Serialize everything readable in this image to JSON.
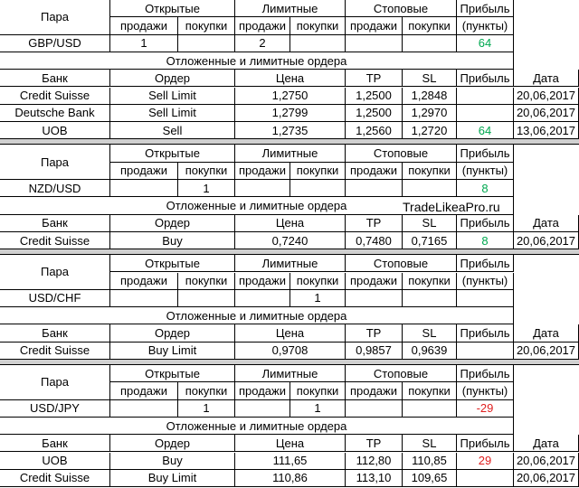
{
  "watermark": "TradeLikeaPro.ru",
  "blocks": [
    {
      "pair_table": {
        "header": [
          "Пара",
          "Открытые",
          "Лимитные",
          "Стоповые",
          "Прибыль"
        ],
        "subheader": [
          "продажи",
          "покупки",
          "продажи",
          "покупки",
          "продажи",
          "покупки",
          "(пункты)"
        ],
        "row": [
          "GBP/USD",
          1,
          null,
          2,
          null,
          null,
          null,
          64
        ],
        "profit_color": "#00a850"
      },
      "orders_title": "Отложенные и лимитные ордера",
      "orders_header": [
        "Банк",
        "Ордер",
        "Цена",
        "TP",
        "SL",
        "Прибыль",
        "Дата"
      ],
      "orders": [
        {
          "cells": [
            "Credit Suisse",
            "Sell Limit",
            "1,2750",
            "1,2500",
            "1,2848",
            null,
            "20,06,2017"
          ]
        },
        {
          "cells": [
            "Deutsche Bank",
            "Sell Limit",
            "1,2799",
            "1,2500",
            "1,2970",
            null,
            "20,06,2017"
          ]
        },
        {
          "cells": [
            "UOB",
            "Sell",
            "1,2735",
            "1,2560",
            "1,2720",
            64,
            "13,06,2017"
          ],
          "profit_color": "#00a850"
        }
      ]
    },
    {
      "pair_table": {
        "header": [
          "Пара",
          "Открытые",
          "Лимитные",
          "Стоповые",
          "Прибыль"
        ],
        "subheader": [
          "продажи",
          "покупки",
          "продажи",
          "покупки",
          "продажи",
          "покупки",
          "(пункты)"
        ],
        "row": [
          "NZD/USD",
          null,
          1,
          null,
          null,
          null,
          null,
          8
        ],
        "profit_color": "#00a850"
      },
      "orders_title": "Отложенные и лимитные ордера",
      "orders_header": [
        "Банк",
        "Ордер",
        "Цена",
        "TP",
        "SL",
        "Прибыль",
        "Дата"
      ],
      "orders": [
        {
          "cells": [
            "Credit Suisse",
            "Buy",
            "0,7240",
            "0,7480",
            "0,7165",
            8,
            "20,06,2017"
          ],
          "profit_color": "#00a850"
        }
      ]
    },
    {
      "pair_table": {
        "header": [
          "Пара",
          "Открытые",
          "Лимитные",
          "Стоповые",
          "Прибыль"
        ],
        "subheader": [
          "продажи",
          "покупки",
          "продажи",
          "покупки",
          "продажи",
          "покупки",
          "(пункты)"
        ],
        "row": [
          "USD/CHF",
          null,
          null,
          null,
          1,
          null,
          null,
          null
        ]
      },
      "orders_title": "Отложенные и лимитные ордера",
      "orders_header": [
        "Банк",
        "Ордер",
        "Цена",
        "TP",
        "SL",
        "Прибыль",
        "Дата"
      ],
      "orders": [
        {
          "cells": [
            "Credit Suisse",
            "Buy Limit",
            "0,9708",
            "0,9857",
            "0,9639",
            null,
            "20,06,2017"
          ]
        }
      ]
    },
    {
      "pair_table": {
        "header": [
          "Пара",
          "Открытые",
          "Лимитные",
          "Стоповые",
          "Прибыль"
        ],
        "subheader": [
          "продажи",
          "покупки",
          "продажи",
          "покупки",
          "продажи",
          "покупки",
          "(пункты)"
        ],
        "row": [
          "USD/JPY",
          null,
          1,
          null,
          1,
          null,
          null,
          -29
        ],
        "profit_color": "#e02020"
      },
      "orders_title": "Отложенные и лимитные ордера",
      "orders_header": [
        "Банк",
        "Ордер",
        "Цена",
        "TP",
        "SL",
        "Прибыль",
        "Дата"
      ],
      "orders": [
        {
          "cells": [
            "UOB",
            "Buy",
            "111,65",
            "112,80",
            "110,85",
            29,
            "20,06,2017"
          ],
          "profit_color": "#e02020"
        },
        {
          "cells": [
            "Credit Suisse",
            "Buy Limit",
            "110,86",
            "113,10",
            "109,65",
            null,
            "20,06,2017"
          ]
        }
      ]
    }
  ]
}
